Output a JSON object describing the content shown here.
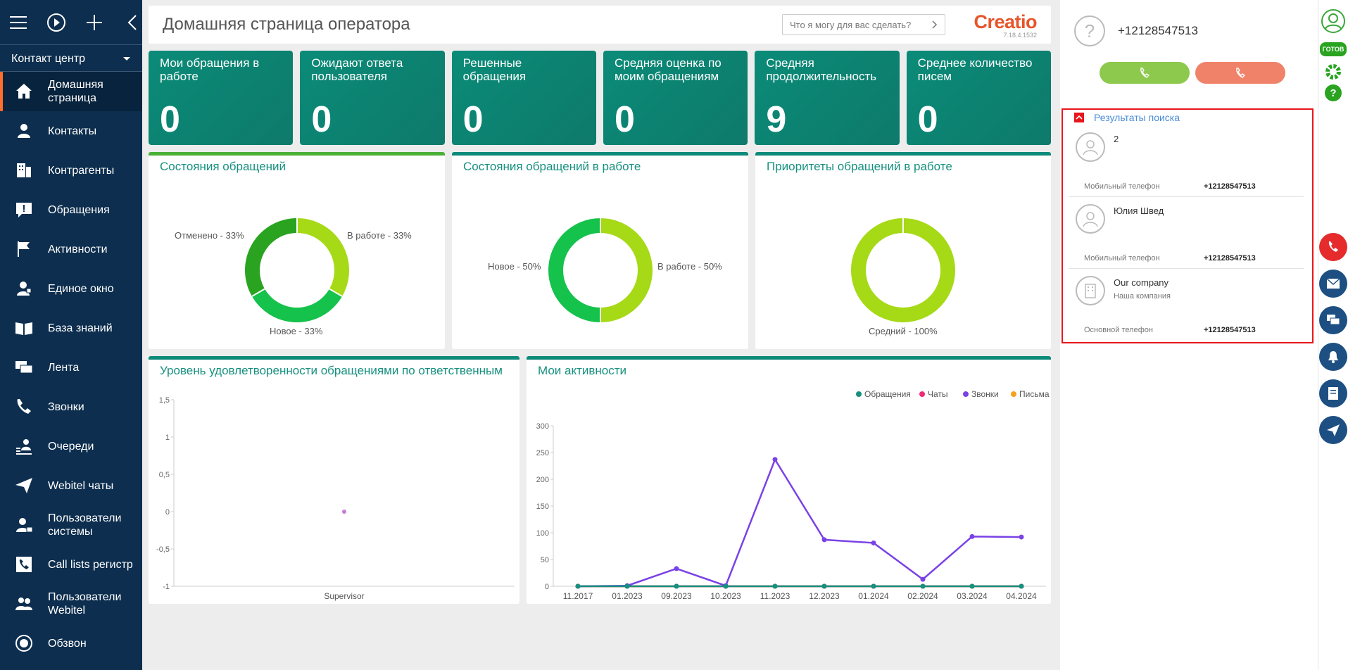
{
  "sidebar": {
    "section": "Контакт центр",
    "items": [
      {
        "label": "Домашняя страница",
        "icon": "home-icon"
      },
      {
        "label": "Контакты",
        "icon": "person-icon"
      },
      {
        "label": "Контрагенты",
        "icon": "building-icon"
      },
      {
        "label": "Обращения",
        "icon": "case-icon"
      },
      {
        "label": "Активности",
        "icon": "flag-icon"
      },
      {
        "label": "Единое окно",
        "icon": "agent-icon"
      },
      {
        "label": "База знаний",
        "icon": "book-icon"
      },
      {
        "label": "Лента",
        "icon": "feed-icon"
      },
      {
        "label": "Звонки",
        "icon": "phone-icon"
      },
      {
        "label": "Очереди",
        "icon": "queue-icon"
      },
      {
        "label": "Webitel чаты",
        "icon": "send-icon"
      },
      {
        "label": "Пользователи системы",
        "icon": "user-lock-icon"
      },
      {
        "label": "Call lists регистр",
        "icon": "calllist-icon"
      },
      {
        "label": "Пользователи Webitel",
        "icon": "users-icon"
      },
      {
        "label": "Обзвон",
        "icon": "dial-icon"
      }
    ]
  },
  "header": {
    "title": "Домашняя страница оператора",
    "ask_placeholder": "Что я могу для вас сделать?",
    "brand": "Creatio",
    "version": "7.18.4.1532"
  },
  "tiles": [
    {
      "title": "Мои обращения в работе",
      "value": "0"
    },
    {
      "title": "Ожидают ответа пользователя",
      "value": "0"
    },
    {
      "title": "Решенные обращения",
      "value": "0"
    },
    {
      "title": "Средняя оценка по моим обращениям",
      "value": "0"
    },
    {
      "title": "Средняя продолжительность",
      "value": "9"
    },
    {
      "title": "Среднее количество писем",
      "value": "0"
    }
  ],
  "donuts": [
    {
      "title": "Состояния обращений",
      "labels": [
        "Отменено - 33%",
        "В работе - 33%",
        "Новое - 33%"
      ]
    },
    {
      "title": "Состояния обращений в работе",
      "labels": [
        "Новое - 50%",
        "В работе - 50%"
      ]
    },
    {
      "title": "Приоритеты обращений в работе",
      "labels": [
        "Средний - 100%"
      ]
    }
  ],
  "colors": {
    "teal": "#0e8a7a",
    "lime": "#a6d916",
    "green": "#15c24b",
    "darkgreen": "#2aa321",
    "purple": "#7a42e6",
    "pink": "#ef2a76",
    "orange": "#f5a21d",
    "accent": "#ff6e2a"
  },
  "chart_data": [
    {
      "type": "scatter",
      "title": "Уровень удовлетворенности обращениями по ответственным",
      "categories": [
        "Supervisor"
      ],
      "values": [
        0
      ],
      "ylim": [
        -1,
        1.5
      ],
      "yticks": [
        "1,5",
        "1",
        "0,5",
        "0",
        "-0,5",
        "-1"
      ]
    },
    {
      "type": "line",
      "title": "Мои активности",
      "x": [
        "11.2017",
        "01.2023",
        "09.2023",
        "10.2023",
        "11.2023",
        "12.2023",
        "01.2024",
        "02.2024",
        "03.2024",
        "04.2024"
      ],
      "ylim": [
        0,
        300
      ],
      "yticks": [
        "300",
        "250",
        "200",
        "150",
        "100",
        "50",
        "0"
      ],
      "legend_position": "top-right",
      "series": [
        {
          "name": "Обращения",
          "color": "#16907f",
          "values": [
            0,
            0,
            0,
            0,
            0,
            0,
            0,
            0,
            0,
            0
          ]
        },
        {
          "name": "Чаты",
          "color": "#ef2a76",
          "values": [
            0,
            0,
            0,
            0,
            0,
            0,
            0,
            0,
            0,
            0
          ]
        },
        {
          "name": "Звонки",
          "color": "#7a42e6",
          "values": [
            0,
            1,
            33,
            1,
            237,
            87,
            81,
            13,
            93,
            92
          ]
        },
        {
          "name": "Письма",
          "color": "#f5a21d",
          "values": [
            0,
            0,
            0,
            0,
            0,
            0,
            0,
            0,
            0,
            0
          ]
        }
      ]
    }
  ],
  "panel": {
    "phone": "+12128547513",
    "results_title": "Результаты поиска",
    "results": [
      {
        "name": "2",
        "sub": "",
        "phone_label": "Мобильный телефон",
        "phone": "+12128547513",
        "type": "contact"
      },
      {
        "name": "Юлия Швед",
        "sub": "",
        "phone_label": "Мобильный телефон",
        "phone": "+12128547513",
        "type": "contact"
      },
      {
        "name": "Our company",
        "sub": "Наша компания",
        "phone_label": "Основной телефон",
        "phone": "+12128547513",
        "type": "account"
      }
    ]
  },
  "edge": {
    "status": "ГОТОВ"
  }
}
